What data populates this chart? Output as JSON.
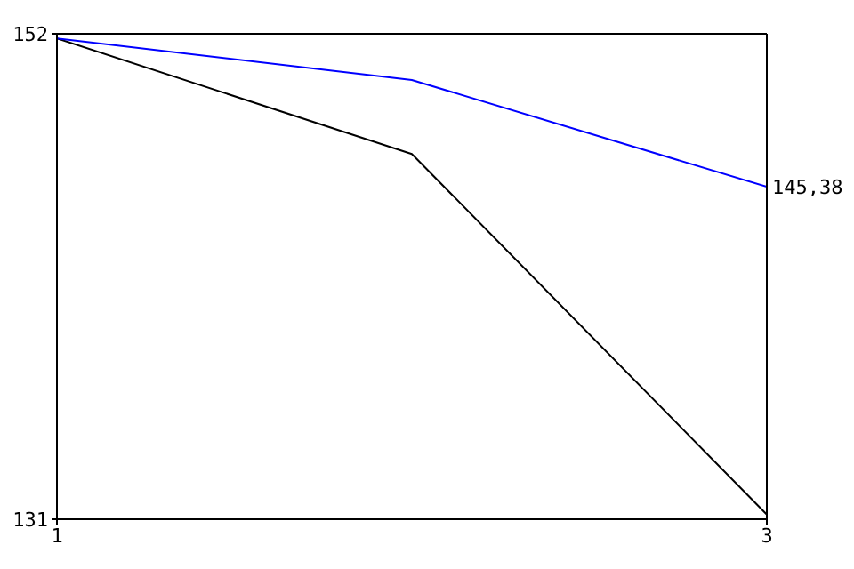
{
  "chart_data": {
    "type": "line",
    "x": [
      1,
      2,
      3
    ],
    "xlim": [
      1,
      3
    ],
    "xticks": [
      1,
      3
    ],
    "ylim": [
      131,
      152
    ],
    "yticks": [
      131,
      152
    ],
    "marker": "none",
    "line_style": "solid",
    "series": [
      {
        "color": "#000000",
        "values": [
          151.8,
          146.8,
          131.2
        ]
      },
      {
        "color": "#0000ff",
        "values": [
          151.8,
          150.0,
          145.38
        ],
        "value_labels": [
          null,
          null,
          "145,38"
        ]
      }
    ]
  }
}
